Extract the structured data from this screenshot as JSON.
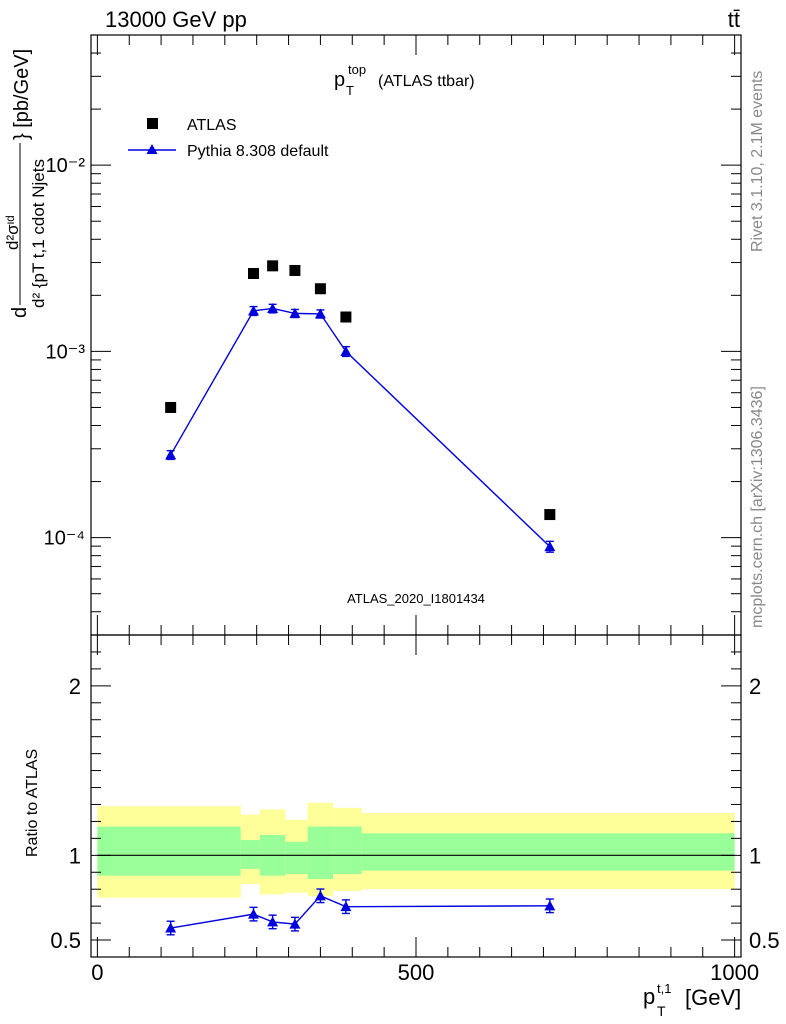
{
  "header": {
    "energy_label": "13000 GeV pp",
    "process_label": "tt̄"
  },
  "side_labels": {
    "rivet": "Rivet 3.1.10,  2.1M events",
    "mcplots": "mcplots.cern.ch [arXiv:1306.3436]"
  },
  "colors": {
    "mc": "#0000dd",
    "data": "#000000",
    "band_inner": "#99ff99",
    "band_outer": "#ffff99",
    "watermark": "#a0a0a0"
  },
  "chart_data": [
    {
      "type": "scatter",
      "title": "p_T^top (ATLAS ttbar)",
      "title_main": "p",
      "title_sub": "T",
      "title_sup": "top",
      "title_rest": "(ATLAS ttbar)",
      "analysis_label": "ATLAS_2020_I1801434",
      "ylabel": "d²σ^id / d²{p_T^t,1 cdot N_jets} [pb/GeV]",
      "yscale": "log",
      "ylim": [
        3e-05,
        0.05
      ],
      "xlim": [
        -10,
        1010
      ],
      "ytick_labels": [
        "10⁻²",
        "10⁻³",
        "10⁻⁴"
      ],
      "legend_position": "top-left",
      "series": [
        {
          "name": "ATLAS",
          "marker": "square",
          "x": [
            115,
            245,
            275,
            310,
            350,
            390,
            710
          ],
          "y": [
            0.0005,
            0.00262,
            0.00288,
            0.00272,
            0.00217,
            0.00153,
            0.000133
          ]
        },
        {
          "name": "Pythia 8.308 default",
          "marker": "triangle",
          "x": [
            115,
            245,
            275,
            310,
            350,
            390,
            710
          ],
          "y": [
            0.000278,
            0.00165,
            0.0017,
            0.0016,
            0.00159,
            0.001,
            8.95e-05
          ],
          "yerr": [
            1.5e-05,
            9e-05,
            9e-05,
            8e-05,
            8e-05,
            6e-05,
            6e-06
          ]
        }
      ]
    },
    {
      "type": "line",
      "ylabel": "Ratio to ATLAS",
      "xlabel": "p_T^t,1 [GeV]",
      "xlabel_main": "p",
      "xlabel_sub": "T",
      "xlabel_sup": "t,1",
      "xlabel_unit": "[GeV]",
      "xlim": [
        -10,
        1010
      ],
      "ylim": [
        0.4,
        2.3
      ],
      "xticks": [
        0,
        500,
        1000
      ],
      "yticks": [
        0.5,
        1,
        2
      ],
      "reference_line": 1,
      "bands": [
        {
          "x0": 0,
          "x1": 225,
          "inner": [
            0.88,
            1.17
          ],
          "outer": [
            0.75,
            1.29
          ]
        },
        {
          "x0": 225,
          "x1": 255,
          "inner": [
            0.92,
            1.09
          ],
          "outer": [
            0.83,
            1.24
          ]
        },
        {
          "x0": 255,
          "x1": 295,
          "inner": [
            0.88,
            1.12
          ],
          "outer": [
            0.77,
            1.27
          ]
        },
        {
          "x0": 295,
          "x1": 330,
          "inner": [
            0.89,
            1.08
          ],
          "outer": [
            0.78,
            1.21
          ]
        },
        {
          "x0": 330,
          "x1": 370,
          "inner": [
            0.86,
            1.17
          ],
          "outer": [
            0.76,
            1.31
          ]
        },
        {
          "x0": 370,
          "x1": 415,
          "inner": [
            0.89,
            1.17
          ],
          "outer": [
            0.79,
            1.28
          ]
        },
        {
          "x0": 415,
          "x1": 1000,
          "inner": [
            0.91,
            1.13
          ],
          "outer": [
            0.8,
            1.25
          ]
        }
      ],
      "series": [
        {
          "name": "Pythia 8.308 default",
          "x": [
            115,
            245,
            275,
            310,
            350,
            390,
            710
          ],
          "y": [
            0.571,
            0.653,
            0.607,
            0.594,
            0.761,
            0.697,
            0.702
          ],
          "yerr": [
            0.04,
            0.04,
            0.04,
            0.04,
            0.04,
            0.04,
            0.04
          ]
        }
      ]
    }
  ]
}
